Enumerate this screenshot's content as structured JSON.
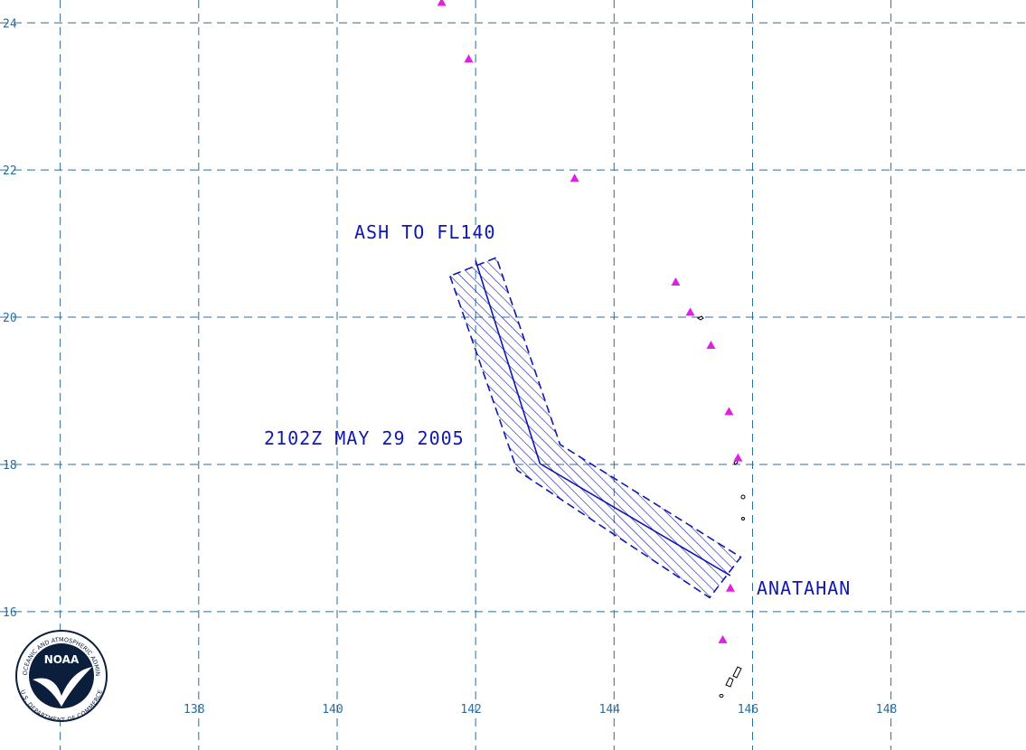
{
  "chart_data": {
    "type": "map",
    "xlim": [
      135.13,
      149.95
    ],
    "ylim": [
      14.12,
      24.31
    ],
    "xticks": [
      {
        "value": 136,
        "label": null
      },
      138,
      140,
      142,
      144,
      146,
      148
    ],
    "yticks": [
      16,
      18,
      20,
      22,
      24
    ],
    "grid": true,
    "annotations": [
      "ASH TO FL140",
      "2102Z MAY 29 2005",
      "ANATAHAN"
    ],
    "volcano_color": "#e020e0",
    "volcanoes": [
      {
        "lon": 141.51,
        "lat": 24.28
      },
      {
        "lon": 141.9,
        "lat": 23.51
      },
      {
        "lon": 143.43,
        "lat": 21.89
      },
      {
        "lon": 144.89,
        "lat": 20.48
      },
      {
        "lon": 145.1,
        "lat": 20.07
      },
      {
        "lon": 145.4,
        "lat": 19.62
      },
      {
        "lon": 145.66,
        "lat": 18.72
      },
      {
        "lon": 145.79,
        "lat": 18.09
      },
      {
        "lon": 145.68,
        "lat": 16.32
      },
      {
        "lon": 145.57,
        "lat": 15.62
      }
    ],
    "ash_color": "#1018b0",
    "ash_area": {
      "lon": [
        141.63,
        142.6,
        145.38,
        145.83,
        143.22,
        142.3
      ],
      "lat": [
        20.56,
        17.92,
        16.19,
        16.74,
        18.27,
        20.81
      ]
    },
    "ash_axis": {
      "lon": [
        142.0,
        142.93,
        145.68
      ],
      "lat": [
        20.77,
        18.01,
        16.49
      ]
    },
    "logo": {
      "name": "NOAA",
      "ring_top": "NATIONAL OCEANIC AND ATMOSPHERIC ADMINISTRATION",
      "ring_bottom": "U.S. DEPARTMENT OF COMMERCE"
    }
  }
}
